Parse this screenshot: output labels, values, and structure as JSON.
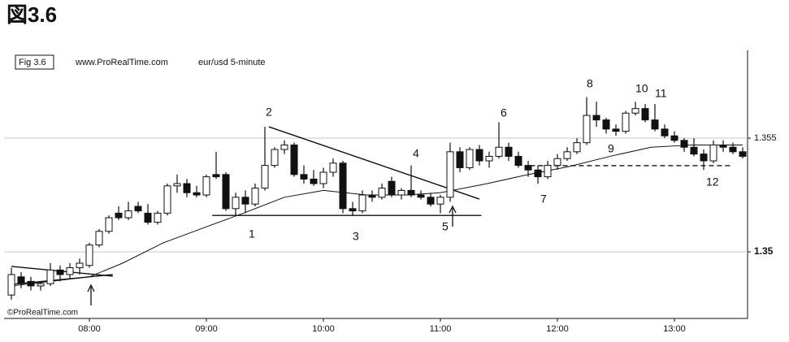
{
  "title": "図3.6",
  "chart_data": {
    "type": "candlestick",
    "label": "Fig 3.6",
    "source": "www.ProRealTime.com",
    "subtitle": "eur/usd  5-minute",
    "copyright": "©ProRealTime.com",
    "x": [
      440,
      445,
      450,
      455,
      460,
      465,
      470,
      475,
      480,
      485,
      490,
      495,
      500,
      505,
      510,
      515,
      520,
      525,
      530,
      535,
      540,
      545,
      550,
      555,
      560,
      565,
      570,
      575,
      580,
      585,
      590,
      595,
      600,
      605,
      610,
      615,
      620,
      625,
      630,
      635,
      640,
      645,
      650,
      655,
      660,
      665,
      670,
      675,
      680,
      685,
      690,
      695,
      700,
      705,
      710,
      715,
      720,
      725,
      730,
      735,
      740,
      745,
      750,
      755,
      760,
      765,
      770,
      775,
      780,
      785,
      790,
      795,
      800,
      805,
      810,
      815
    ],
    "open": [
      1.3481,
      1.3489,
      1.3487,
      1.3485,
      1.3486,
      1.3492,
      1.349,
      1.3493,
      1.3494,
      1.3503,
      1.3509,
      1.3517,
      1.3515,
      1.352,
      1.3517,
      1.3513,
      1.3517,
      1.3529,
      1.353,
      1.3526,
      1.3525,
      1.3534,
      1.3534,
      1.3519,
      1.3524,
      1.3521,
      1.3528,
      1.3538,
      1.3545,
      1.3547,
      1.3534,
      1.3532,
      1.353,
      1.3535,
      1.3539,
      1.3519,
      1.3518,
      1.3525,
      1.3524,
      1.3531,
      1.3525,
      1.3527,
      1.3525,
      1.3524,
      1.3521,
      1.3524,
      1.3544,
      1.3537,
      1.3545,
      1.354,
      1.3542,
      1.3546,
      1.3542,
      1.3538,
      1.3536,
      1.3533,
      1.3538,
      1.3541,
      1.3544,
      1.3548,
      1.356,
      1.3558,
      1.3554,
      1.3553,
      1.3561,
      1.3563,
      1.3558,
      1.3554,
      1.3551,
      1.3549,
      1.3546,
      1.3543,
      1.354,
      1.3547,
      1.3546,
      1.3544
    ],
    "high": [
      1.3493,
      1.3491,
      1.3489,
      1.3487,
      1.3495,
      1.3494,
      1.3495,
      1.3497,
      1.3504,
      1.351,
      1.3516,
      1.352,
      1.3522,
      1.3522,
      1.3521,
      1.3518,
      1.353,
      1.3534,
      1.3532,
      1.3529,
      1.3534,
      1.3544,
      1.3535,
      1.3526,
      1.3527,
      1.353,
      1.3555,
      1.3546,
      1.3549,
      1.3548,
      1.3538,
      1.3536,
      1.3537,
      1.3541,
      1.354,
      1.3522,
      1.3527,
      1.3527,
      1.353,
      1.3533,
      1.3528,
      1.3538,
      1.3527,
      1.3526,
      1.3525,
      1.3548,
      1.3546,
      1.3546,
      1.3547,
      1.3544,
      1.3557,
      1.3548,
      1.3544,
      1.354,
      1.3538,
      1.354,
      1.3543,
      1.3546,
      1.355,
      1.3568,
      1.3566,
      1.3559,
      1.3556,
      1.3562,
      1.3566,
      1.3565,
      1.3565,
      1.3556,
      1.3553,
      1.355,
      1.355,
      1.3545,
      1.3549,
      1.3549,
      1.3548,
      1.3546
    ],
    "low": [
      1.3479,
      1.3484,
      1.3483,
      1.3483,
      1.3485,
      1.3487,
      1.3488,
      1.349,
      1.3493,
      1.3502,
      1.3508,
      1.3514,
      1.3514,
      1.3517,
      1.3512,
      1.3512,
      1.3516,
      1.3526,
      1.3524,
      1.3524,
      1.3524,
      1.3532,
      1.3518,
      1.3516,
      1.3517,
      1.352,
      1.3527,
      1.3537,
      1.3543,
      1.3533,
      1.353,
      1.3529,
      1.3528,
      1.3533,
      1.3517,
      1.3516,
      1.3517,
      1.3522,
      1.3523,
      1.3524,
      1.3523,
      1.3524,
      1.3523,
      1.352,
      1.3517,
      1.3522,
      1.3535,
      1.3536,
      1.3538,
      1.3537,
      1.3541,
      1.354,
      1.3537,
      1.3533,
      1.353,
      1.3532,
      1.3536,
      1.354,
      1.3543,
      1.3547,
      1.3555,
      1.3552,
      1.3551,
      1.3552,
      1.356,
      1.3557,
      1.3553,
      1.355,
      1.3548,
      1.3544,
      1.3542,
      1.3536,
      1.3539,
      1.3544,
      1.3543,
      1.3541
    ],
    "close": [
      1.349,
      1.3486,
      1.3485,
      1.3486,
      1.3492,
      1.349,
      1.3493,
      1.3495,
      1.3503,
      1.3509,
      1.3515,
      1.3515,
      1.3518,
      1.3518,
      1.3513,
      1.3517,
      1.3529,
      1.353,
      1.3526,
      1.3525,
      1.3533,
      1.3533,
      1.3519,
      1.3524,
      1.3521,
      1.3528,
      1.3538,
      1.3545,
      1.3547,
      1.3534,
      1.3532,
      1.353,
      1.3535,
      1.3539,
      1.3519,
      1.3518,
      1.3525,
      1.3524,
      1.3528,
      1.3525,
      1.3527,
      1.3525,
      1.3524,
      1.3521,
      1.3524,
      1.3544,
      1.3537,
      1.3545,
      1.354,
      1.3542,
      1.3546,
      1.3542,
      1.3538,
      1.3536,
      1.3533,
      1.3538,
      1.3541,
      1.3544,
      1.3548,
      1.356,
      1.3558,
      1.3554,
      1.3553,
      1.3561,
      1.3563,
      1.3558,
      1.3554,
      1.3551,
      1.3549,
      1.3546,
      1.3543,
      1.354,
      1.3547,
      1.3546,
      1.3544,
      1.3542
    ],
    "moving_average": {
      "x": [
        440,
        480,
        497,
        518,
        540,
        559,
        580,
        600,
        622,
        643,
        660,
        684,
        705,
        726,
        747,
        768,
        789,
        815
      ],
      "values": [
        1.3485,
        1.3489,
        1.3495,
        1.3504,
        1.3511,
        1.3517,
        1.3524,
        1.3527,
        1.3525,
        1.3525,
        1.3526,
        1.353,
        1.3534,
        1.35375,
        1.3542,
        1.3546,
        1.3547,
        1.3547
      ]
    },
    "trendlines": [
      {
        "x": [
          572,
          680
        ],
        "y": [
          1.3555,
          1.35232
        ],
        "style": "solid"
      },
      {
        "x": [
          543,
          681
        ],
        "y": [
          1.3516,
          1.3516
        ],
        "style": "solid"
      },
      {
        "x": [
          440,
          492
        ],
        "y": [
          1.34936,
          1.34893
        ],
        "style": "solid"
      },
      {
        "x": [
          440,
          492
        ],
        "y": [
          1.34857,
          1.349
        ],
        "style": "solid"
      },
      {
        "x": [
          706,
          809
        ],
        "y": [
          1.35379,
          1.35379
        ],
        "style": "dashed"
      }
    ],
    "annotations": [
      "1",
      "2",
      "3",
      "4",
      "5",
      "6",
      "7",
      "8",
      "9",
      "10",
      "11",
      "12"
    ],
    "xlim": [
      436.25,
      817.5
    ],
    "ylim": [
      1.34707,
      1.35886
    ],
    "xticks": [
      {
        "value": 480,
        "label": "08:00"
      },
      {
        "value": 540,
        "label": "09:00"
      },
      {
        "value": 600,
        "label": "10:00"
      },
      {
        "value": 660,
        "label": "11:00"
      },
      {
        "value": 720,
        "label": "12:00"
      },
      {
        "value": 780,
        "label": "13:00"
      }
    ],
    "yticks": [
      1.35,
      1.355
    ],
    "grid": true
  }
}
